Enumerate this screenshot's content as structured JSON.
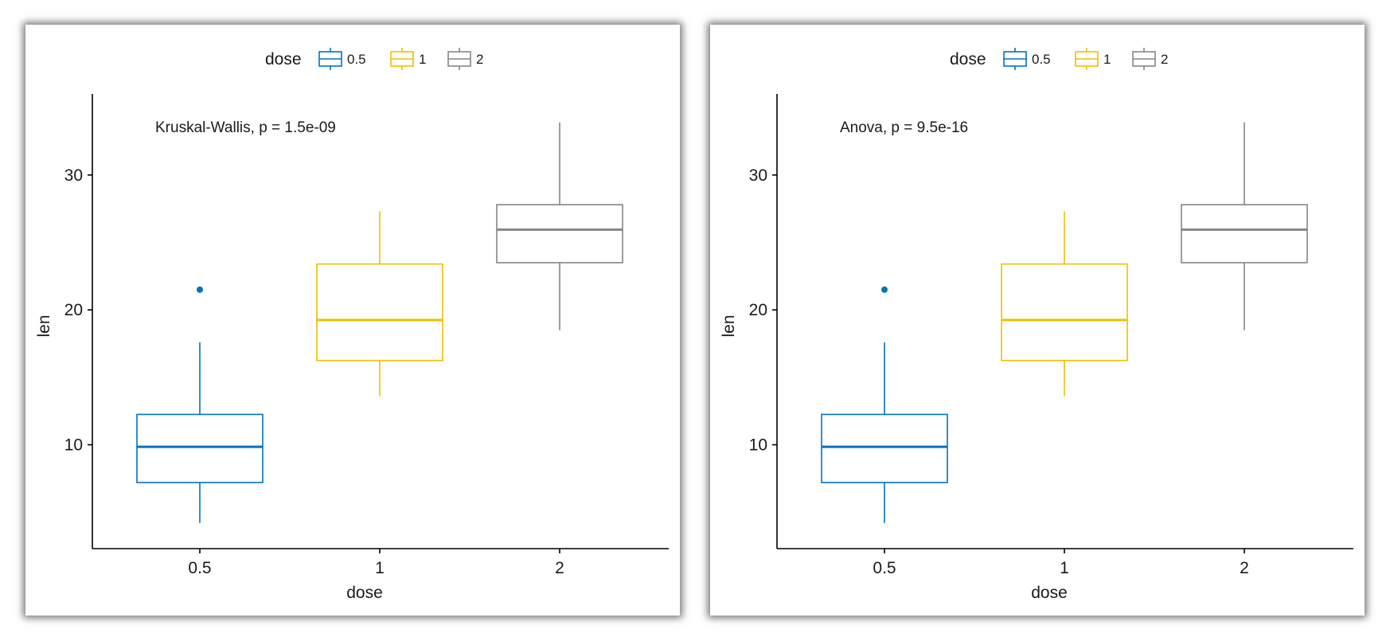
{
  "colors": {
    "0.5": "#0073C2",
    "1": "#EFC000",
    "2": "#868686",
    "axis": "#000000",
    "text": "#1a1a1a"
  },
  "chart_data": [
    {
      "type": "boxplot",
      "legend": {
        "title": "dose",
        "entries": [
          "0.5",
          "1",
          "2"
        ],
        "position": "top"
      },
      "annotation": "Kruskal-Wallis, p = 1.5e-09",
      "xlabel": "dose",
      "ylabel": "len",
      "categories": [
        "0.5",
        "1",
        "2"
      ],
      "y_ticks": [
        "10",
        "20",
        "30"
      ],
      "ylim": [
        2.3,
        35.3
      ],
      "boxes": [
        {
          "category": "0.5",
          "min": 4.2,
          "q1": 7.2,
          "median": 9.85,
          "q3": 12.25,
          "max": 17.6,
          "outliers": [
            21.5
          ]
        },
        {
          "category": "1",
          "min": 13.6,
          "q1": 16.25,
          "median": 19.25,
          "q3": 23.4,
          "max": 27.3,
          "outliers": []
        },
        {
          "category": "2",
          "min": 18.5,
          "q1": 23.5,
          "median": 25.95,
          "q3": 27.8,
          "max": 33.9,
          "outliers": []
        }
      ]
    },
    {
      "type": "boxplot",
      "legend": {
        "title": "dose",
        "entries": [
          "0.5",
          "1",
          "2"
        ],
        "position": "top"
      },
      "annotation": "Anova, p = 9.5e-16",
      "xlabel": "dose",
      "ylabel": "len",
      "categories": [
        "0.5",
        "1",
        "2"
      ],
      "y_ticks": [
        "10",
        "20",
        "30"
      ],
      "ylim": [
        2.3,
        35.3
      ],
      "boxes": [
        {
          "category": "0.5",
          "min": 4.2,
          "q1": 7.2,
          "median": 9.85,
          "q3": 12.25,
          "max": 17.6,
          "outliers": [
            21.5
          ]
        },
        {
          "category": "1",
          "min": 13.6,
          "q1": 16.25,
          "median": 19.25,
          "q3": 23.4,
          "max": 27.3,
          "outliers": []
        },
        {
          "category": "2",
          "min": 18.5,
          "q1": 23.5,
          "median": 25.95,
          "q3": 27.8,
          "max": 33.9,
          "outliers": []
        }
      ]
    }
  ]
}
